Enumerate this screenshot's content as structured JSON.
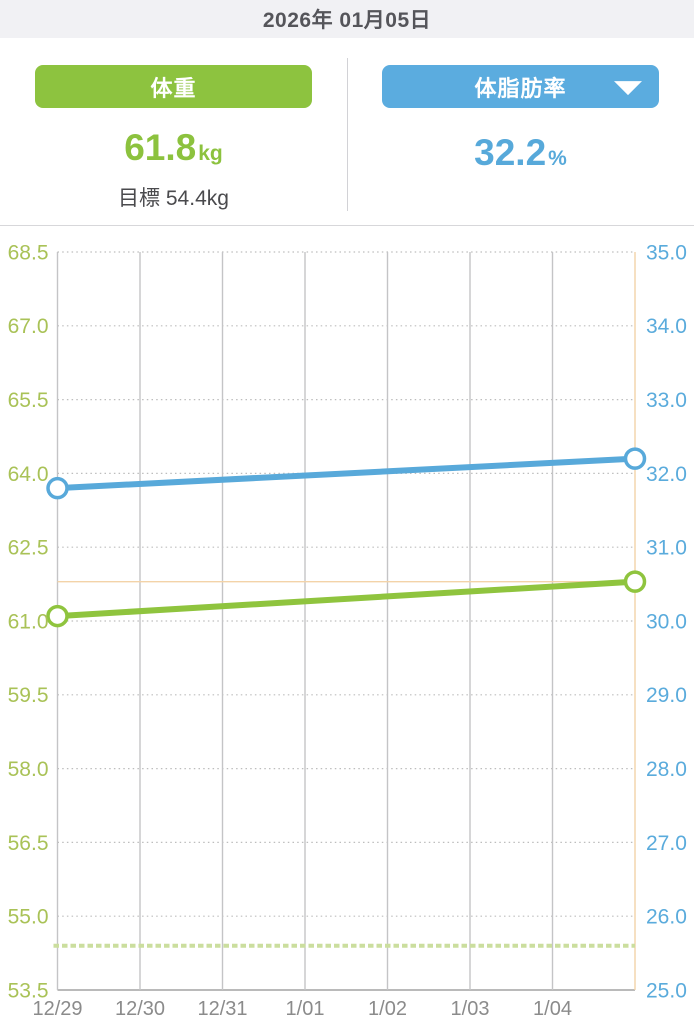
{
  "header": {
    "date": "2026年 01月05日"
  },
  "metrics": {
    "weight": {
      "button_label": "体重",
      "value": "61.8",
      "unit": "kg",
      "goal_label": "目標 54.4kg"
    },
    "body_fat": {
      "button_label": "体脂肪率",
      "value": "32.2",
      "unit": "%",
      "has_dropdown": true
    }
  },
  "colors": {
    "accent_green": "#8dc33f",
    "accent_blue": "#5bacdf",
    "header_bg": "#f1f1f4",
    "goal_text_gray": "#4a4a4d",
    "crosshair_orange": "#f3d3a8",
    "goal_line_green": "#cbde9e"
  },
  "chart_data": {
    "type": "line",
    "x_labels": [
      "12/29",
      "12/30",
      "12/31",
      "1/01",
      "1/02",
      "1/03",
      "1/04"
    ],
    "x_slot_count": 7,
    "left_axis": {
      "min": 53.5,
      "max": 68.5,
      "tick_step": 1.5,
      "ticks": [
        "68.5",
        "67.0",
        "65.5",
        "64.0",
        "62.5",
        "61.0",
        "59.5",
        "58.0",
        "56.5",
        "55.0",
        "53.5"
      ],
      "color": "#a9c257"
    },
    "right_axis": {
      "min": 25.0,
      "max": 35.0,
      "tick_step": 1.0,
      "ticks": [
        "35.0",
        "34.0",
        "33.0",
        "32.0",
        "31.0",
        "30.0",
        "29.0",
        "28.0",
        "27.0",
        "26.0",
        "25.0"
      ],
      "color": "#5aabdc"
    },
    "series": [
      {
        "name": "体重",
        "axis": "left",
        "color": "#8fc43e",
        "points": [
          {
            "x_slot": 0,
            "value": 61.1
          },
          {
            "x_slot": 7,
            "value": 61.8
          }
        ]
      },
      {
        "name": "体脂肪率",
        "axis": "right",
        "color": "#58a9da",
        "points": [
          {
            "x_slot": 0,
            "value": 31.8
          },
          {
            "x_slot": 7,
            "value": 32.2
          }
        ]
      }
    ],
    "goal_line": {
      "axis": "left",
      "value": 54.4,
      "color": "#cbde9e",
      "style": "dashed"
    },
    "crosshair": {
      "x_slot": 7,
      "axis": "left",
      "value": 61.8,
      "color": "#f3d3a8"
    },
    "grid": {
      "vertical_color": "#c4c4c6",
      "dotted_color": "#bdbdbd",
      "axis_color": "#a3a3a3",
      "xlabel_color": "#8b8b8b"
    },
    "legend_position": "none",
    "grid_on": true
  }
}
